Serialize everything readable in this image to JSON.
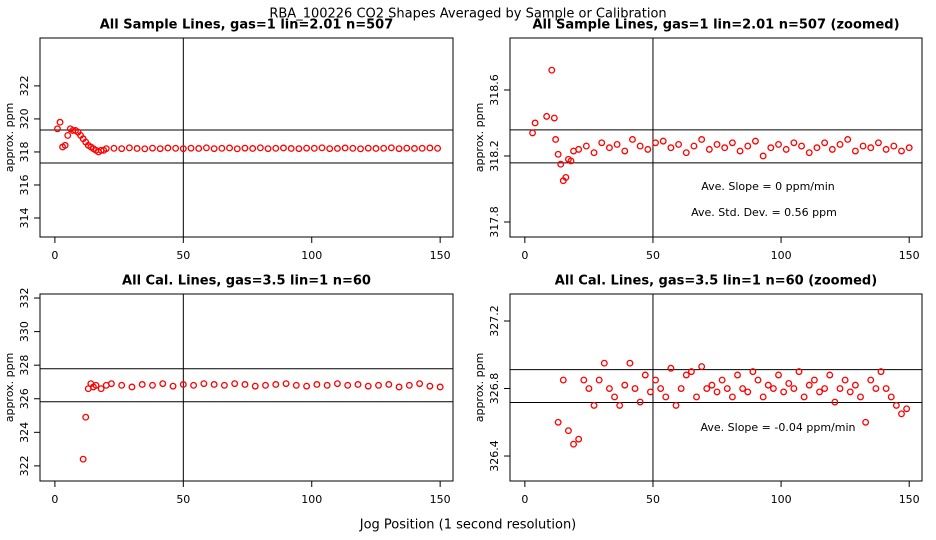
{
  "title": "RBA_100226  CO2 Shapes Averaged by Sample or Calibration",
  "xlabel": "Jog Position (1 second resolution)",
  "chart_data": [
    {
      "type": "scatter",
      "title": "All Sample Lines, gas=1 lin=2.01 n=507",
      "ylabel": "approx. ppm",
      "color": "#ff0000",
      "xlim": [
        -5.8,
        155
      ],
      "xticks": [
        0,
        50,
        100,
        150
      ],
      "ylim": [
        312.85,
        324.9
      ],
      "yticks": [
        314,
        316,
        318,
        320,
        322
      ],
      "vline": 50,
      "hlines": [
        319.33,
        317.33
      ],
      "annotations": [],
      "x": [
        1,
        2,
        3,
        4,
        5,
        6,
        7,
        8,
        9,
        10,
        11,
        12,
        13,
        14,
        15,
        16,
        17,
        18,
        19,
        20,
        23,
        26,
        29,
        32,
        35,
        38,
        41,
        44,
        47,
        50,
        53,
        56,
        59,
        62,
        65,
        68,
        71,
        74,
        77,
        80,
        83,
        86,
        89,
        92,
        95,
        98,
        101,
        104,
        107,
        110,
        113,
        116,
        119,
        122,
        125,
        128,
        131,
        134,
        137,
        140,
        143,
        146,
        149
      ],
      "values": [
        319.4,
        319.8,
        318.3,
        318.4,
        319.0,
        319.4,
        319.3,
        319.3,
        319.2,
        319.0,
        318.8,
        318.6,
        318.4,
        318.3,
        318.2,
        318.1,
        318.0,
        318.1,
        318.1,
        318.2,
        318.22,
        318.2,
        318.25,
        318.21,
        318.19,
        318.23,
        318.2,
        318.24,
        318.22,
        318.2,
        318.23,
        318.21,
        318.25,
        318.2,
        318.22,
        318.24,
        318.19,
        318.23,
        318.21,
        318.25,
        318.2,
        318.22,
        318.24,
        318.21,
        318.2,
        318.23,
        318.22,
        318.25,
        318.2,
        318.21,
        318.24,
        318.22,
        318.19,
        318.23,
        318.21,
        318.22,
        318.25,
        318.2,
        318.23,
        318.21,
        318.22,
        318.24,
        318.22
      ]
    },
    {
      "type": "scatter",
      "title": "All Sample Lines, gas=1 lin=2.01 n=507 (zoomed)",
      "ylabel": "approx. ppm",
      "color": "#ff0000",
      "xlim": [
        -5.8,
        155
      ],
      "xticks": [
        0,
        50,
        100,
        150
      ],
      "ylim": [
        317.709,
        318.915
      ],
      "yticks": [
        317.8,
        318.2,
        318.6
      ],
      "vline": 50,
      "hlines": [
        318.358,
        318.158
      ],
      "annotations": [
        "Ave. Slope =  0  ppm/min",
        "Ave. Std. Dev. =  0.56  ppm"
      ],
      "x": [
        3,
        4,
        8.5,
        10.5,
        11.5,
        12,
        13,
        14,
        15,
        16,
        17,
        18,
        19,
        21,
        24,
        27,
        30,
        33,
        36,
        39,
        42,
        45,
        48,
        51,
        54,
        57,
        60,
        63,
        66,
        69,
        72,
        75,
        78,
        81,
        84,
        87,
        90,
        93,
        96,
        99,
        102,
        105,
        108,
        111,
        114,
        117,
        120,
        123,
        126,
        129,
        132,
        135,
        138,
        141,
        144,
        147,
        150
      ],
      "values": [
        318.34,
        318.4,
        318.44,
        318.72,
        318.43,
        318.3,
        318.21,
        318.15,
        318.05,
        318.07,
        318.18,
        318.17,
        318.23,
        318.24,
        318.26,
        318.22,
        318.28,
        318.25,
        318.27,
        318.23,
        318.3,
        318.26,
        318.24,
        318.28,
        318.29,
        318.25,
        318.27,
        318.22,
        318.26,
        318.3,
        318.24,
        318.27,
        318.25,
        318.28,
        318.23,
        318.26,
        318.29,
        318.2,
        318.25,
        318.27,
        318.24,
        318.28,
        318.26,
        318.22,
        318.25,
        318.28,
        318.24,
        318.27,
        318.3,
        318.23,
        318.26,
        318.25,
        318.28,
        318.24,
        318.26,
        318.23,
        318.25
      ]
    },
    {
      "type": "scatter",
      "title": "All Cal. Lines, gas=3.5 lin=1 n=60",
      "ylabel": "approx. ppm",
      "color": "#ff0000",
      "xlim": [
        -5.8,
        155
      ],
      "xticks": [
        0,
        50,
        100,
        150
      ],
      "ylim": [
        321.1,
        332.24
      ],
      "yticks": [
        322,
        324,
        326,
        328,
        330,
        332
      ],
      "vline": 50,
      "hlines": [
        327.79,
        325.82
      ],
      "annotations": [],
      "x": [
        11,
        12,
        13,
        14,
        15,
        16,
        18,
        20,
        22,
        26,
        30,
        34,
        38,
        42,
        46,
        50,
        54,
        58,
        62,
        66,
        70,
        74,
        78,
        82,
        86,
        90,
        94,
        98,
        102,
        106,
        110,
        114,
        118,
        122,
        126,
        130,
        134,
        138,
        142,
        146,
        150
      ],
      "values": [
        322.4,
        324.9,
        326.6,
        326.9,
        326.7,
        326.8,
        326.6,
        326.8,
        326.9,
        326.8,
        326.7,
        326.85,
        326.8,
        326.9,
        326.75,
        326.85,
        326.8,
        326.9,
        326.85,
        326.8,
        326.9,
        326.85,
        326.75,
        326.8,
        326.85,
        326.9,
        326.8,
        326.75,
        326.85,
        326.8,
        326.9,
        326.8,
        326.85,
        326.75,
        326.8,
        326.85,
        326.7,
        326.8,
        326.9,
        326.75,
        326.7
      ]
    },
    {
      "type": "scatter",
      "title": "All Cal. Lines, gas=3.5 lin=1 n=60 (zoomed)",
      "ylabel": "approx. ppm",
      "color": "#ff0000",
      "xlim": [
        -5.8,
        155
      ],
      "xticks": [
        0,
        50,
        100,
        150
      ],
      "ylim": [
        326.252,
        327.36
      ],
      "yticks": [
        326.4,
        326.8,
        327.2
      ],
      "vline": 50,
      "hlines": [
        326.912,
        326.717
      ],
      "annotations": [
        "Ave. Slope =  -0.04  ppm/min"
      ],
      "x": [
        13,
        15,
        17,
        19,
        21,
        23,
        25,
        27,
        29,
        31,
        33,
        35,
        37,
        39,
        41,
        43,
        45,
        47,
        49,
        51,
        53,
        55,
        57,
        59,
        61,
        63,
        65,
        67,
        69,
        71,
        73,
        75,
        77,
        79,
        81,
        83,
        85,
        87,
        89,
        91,
        93,
        95,
        97,
        99,
        101,
        103,
        105,
        107,
        109,
        111,
        113,
        115,
        117,
        119,
        121,
        123,
        125,
        127,
        129,
        131,
        133,
        135,
        137,
        139,
        141,
        143,
        145,
        147,
        149
      ],
      "values": [
        326.6,
        326.85,
        326.55,
        326.47,
        326.5,
        326.85,
        326.8,
        326.7,
        326.85,
        326.95,
        326.8,
        326.75,
        326.7,
        326.82,
        326.95,
        326.8,
        326.72,
        326.88,
        326.78,
        326.85,
        326.8,
        326.75,
        326.92,
        326.7,
        326.8,
        326.88,
        326.9,
        326.75,
        326.93,
        326.8,
        326.82,
        326.78,
        326.85,
        326.8,
        326.75,
        326.88,
        326.8,
        326.78,
        326.9,
        326.85,
        326.75,
        326.82,
        326.8,
        326.88,
        326.78,
        326.83,
        326.8,
        326.9,
        326.75,
        326.82,
        326.85,
        326.78,
        326.8,
        326.88,
        326.72,
        326.8,
        326.85,
        326.78,
        326.82,
        326.75,
        326.6,
        326.85,
        326.8,
        326.9,
        326.8,
        326.75,
        326.7,
        326.65,
        326.68
      ]
    }
  ]
}
